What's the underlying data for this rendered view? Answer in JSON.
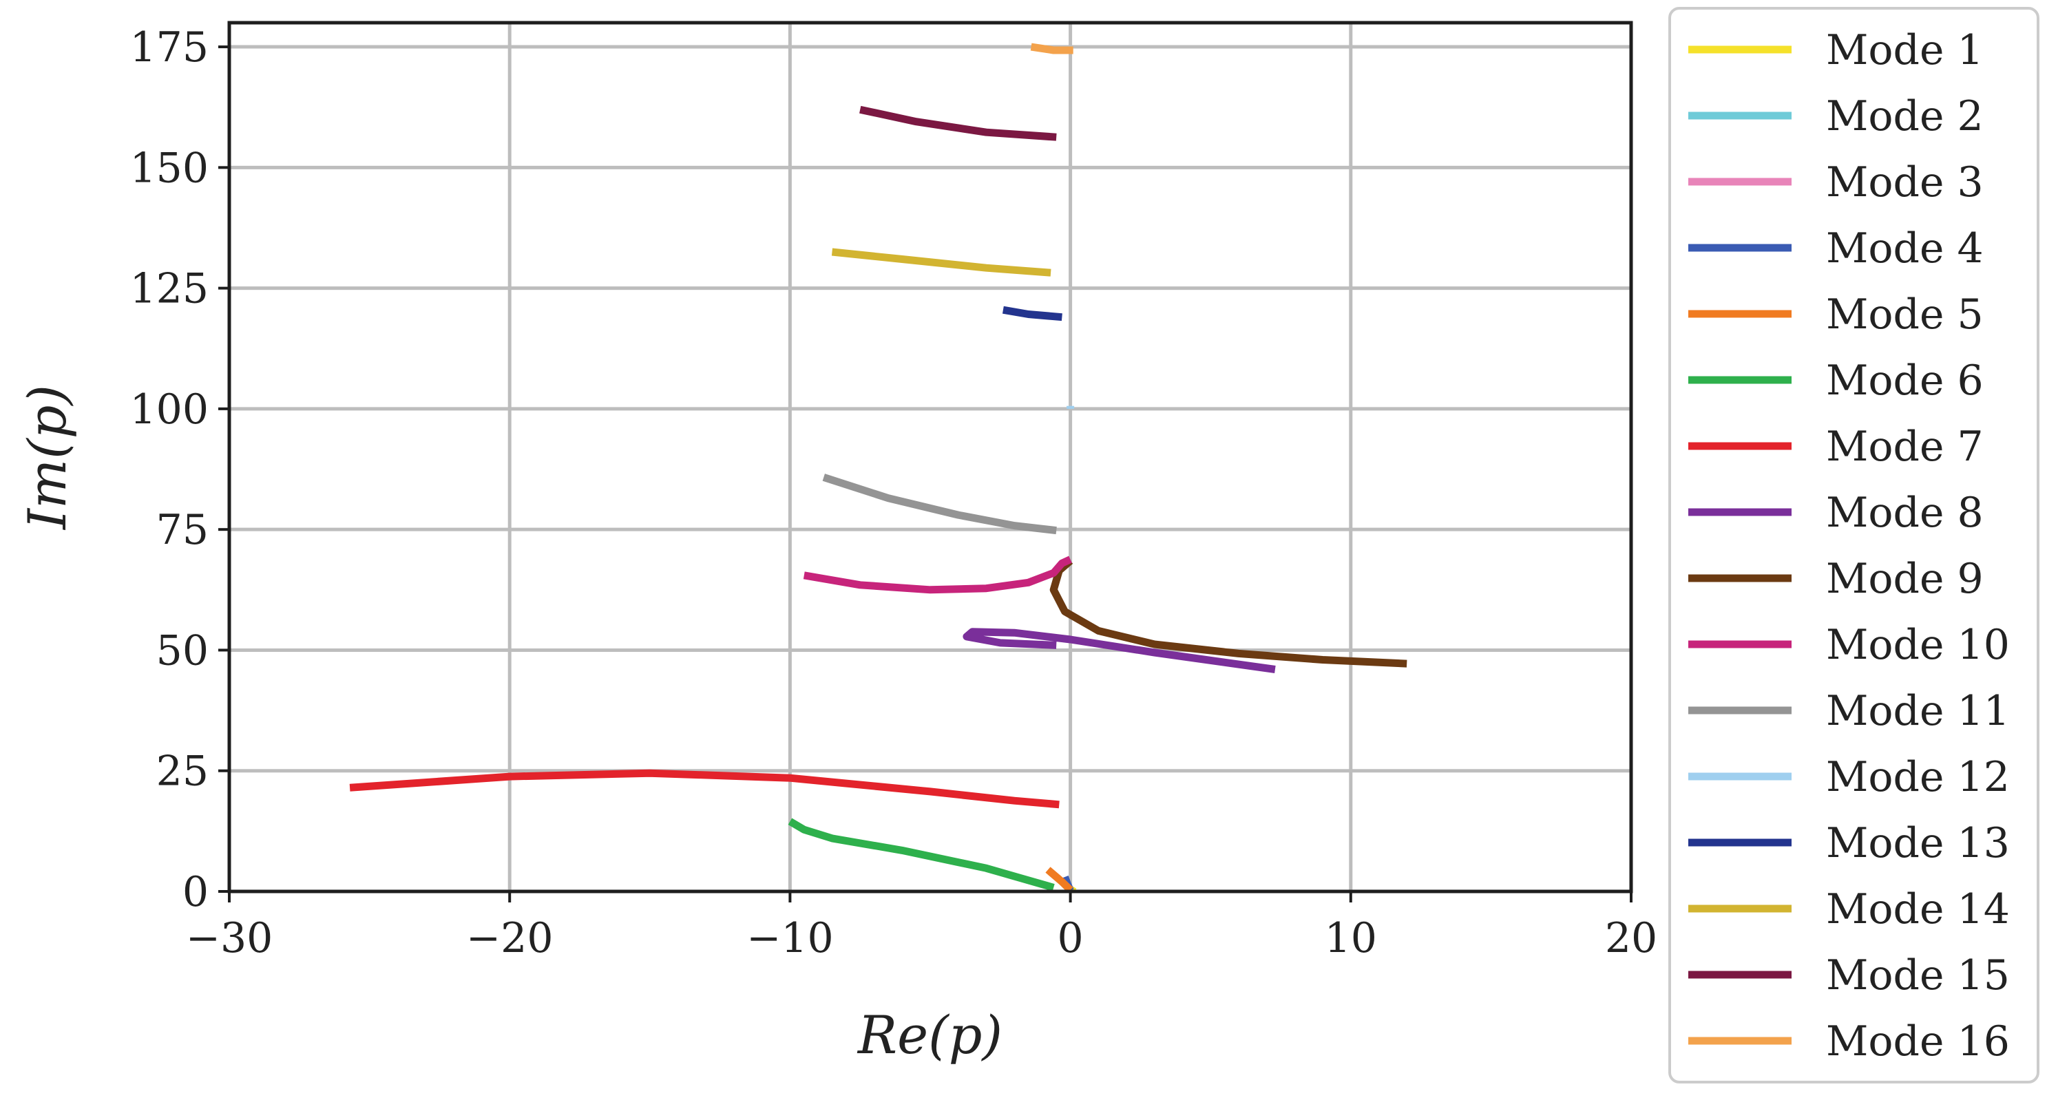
{
  "chart_data": {
    "type": "line",
    "title": "",
    "xlabel": "Re(p)",
    "ylabel": "Im(p)",
    "xlim": [
      -30,
      20
    ],
    "ylim": [
      0,
      180
    ],
    "xticks": [
      -30,
      -20,
      -10,
      0,
      10,
      20
    ],
    "yticks": [
      0,
      25,
      50,
      75,
      100,
      125,
      150,
      175
    ],
    "xtick_labels": [
      "−30",
      "−20",
      "−10",
      "0",
      "10",
      "20"
    ],
    "ytick_labels": [
      "0",
      "25",
      "50",
      "75",
      "100",
      "125",
      "150",
      "175"
    ],
    "grid": true,
    "legend_position": "outside-right",
    "series": [
      {
        "name": "Mode 1",
        "color": "#f5e12a",
        "points": [
          [
            0.0,
            0.0
          ],
          [
            0.05,
            0.5
          ],
          [
            0.1,
            1.0
          ]
        ]
      },
      {
        "name": "Mode 2",
        "color": "#6fcbd8",
        "points": [
          [
            0.0,
            0.0
          ],
          [
            0.0,
            0.3
          ]
        ]
      },
      {
        "name": "Mode 3",
        "color": "#e884b9",
        "points": [
          [
            0.0,
            0.0
          ],
          [
            0.0,
            0.2
          ]
        ]
      },
      {
        "name": "Mode 4",
        "color": "#3a5bb3",
        "points": [
          [
            0.0,
            0.2
          ],
          [
            -0.1,
            1.5
          ],
          [
            -0.2,
            3.0
          ]
        ]
      },
      {
        "name": "Mode 5",
        "color": "#f07b21",
        "points": [
          [
            0.0,
            0.3
          ],
          [
            -0.3,
            2.0
          ],
          [
            -0.8,
            4.5
          ]
        ]
      },
      {
        "name": "Mode 6",
        "color": "#2eb04c",
        "points": [
          [
            -0.6,
            0.8
          ],
          [
            -3,
            4.8
          ],
          [
            -6,
            8.5
          ],
          [
            -8.5,
            11.0
          ],
          [
            -9.5,
            12.8
          ],
          [
            -10.0,
            14.5
          ]
        ]
      },
      {
        "name": "Mode 7",
        "color": "#e3232b",
        "points": [
          [
            -0.4,
            18.0
          ],
          [
            -2,
            18.8
          ],
          [
            -5,
            20.7
          ],
          [
            -10,
            23.5
          ],
          [
            -15,
            24.5
          ],
          [
            -20,
            23.8
          ],
          [
            -25.7,
            21.5
          ]
        ]
      },
      {
        "name": "Mode 8",
        "color": "#7a2f9a",
        "points": [
          [
            7.3,
            46.0
          ],
          [
            3,
            49.5
          ],
          [
            0,
            52.2
          ],
          [
            -2,
            53.6
          ],
          [
            -3.5,
            53.8
          ],
          [
            -3.7,
            52.8
          ],
          [
            -2.5,
            51.5
          ],
          [
            -0.5,
            51.0
          ]
        ]
      },
      {
        "name": "Mode 9",
        "color": "#6b3a12",
        "points": [
          [
            12.0,
            47.2
          ],
          [
            9,
            48.0
          ],
          [
            6,
            49.3
          ],
          [
            3,
            51.2
          ],
          [
            1,
            54.0
          ],
          [
            -0.2,
            58.0
          ],
          [
            -0.6,
            62.5
          ],
          [
            -0.4,
            66.5
          ],
          [
            0.0,
            68.5
          ]
        ]
      },
      {
        "name": "Mode 10",
        "color": "#c7247b",
        "points": [
          [
            -9.5,
            65.5
          ],
          [
            -7.5,
            63.5
          ],
          [
            -5,
            62.5
          ],
          [
            -3,
            62.8
          ],
          [
            -1.5,
            64.0
          ],
          [
            -0.6,
            66.0
          ],
          [
            -0.3,
            68.0
          ],
          [
            0.0,
            68.8
          ]
        ]
      },
      {
        "name": "Mode 11",
        "color": "#949494",
        "points": [
          [
            -8.8,
            85.8
          ],
          [
            -6.5,
            81.5
          ],
          [
            -4,
            78.0
          ],
          [
            -2,
            75.8
          ],
          [
            -0.5,
            74.8
          ]
        ]
      },
      {
        "name": "Mode 12",
        "color": "#9fcfef",
        "points": [
          [
            0.0,
            100.0
          ],
          [
            0.0,
            100.6
          ]
        ]
      },
      {
        "name": "Mode 13",
        "color": "#23348e",
        "points": [
          [
            -2.4,
            120.5
          ],
          [
            -1.5,
            119.6
          ],
          [
            -0.3,
            119.0
          ]
        ]
      },
      {
        "name": "Mode 14",
        "color": "#d2b431",
        "points": [
          [
            -8.5,
            132.5
          ],
          [
            -6,
            131.0
          ],
          [
            -3,
            129.2
          ],
          [
            -0.7,
            128.2
          ]
        ]
      },
      {
        "name": "Mode 15",
        "color": "#7b1842",
        "points": [
          [
            -7.5,
            162.0
          ],
          [
            -5.5,
            159.5
          ],
          [
            -3,
            157.3
          ],
          [
            -0.5,
            156.3
          ]
        ]
      },
      {
        "name": "Mode 16",
        "color": "#f3a24c",
        "points": [
          [
            -1.4,
            175.0
          ],
          [
            -0.6,
            174.3
          ],
          [
            0.1,
            174.3
          ]
        ]
      }
    ]
  }
}
